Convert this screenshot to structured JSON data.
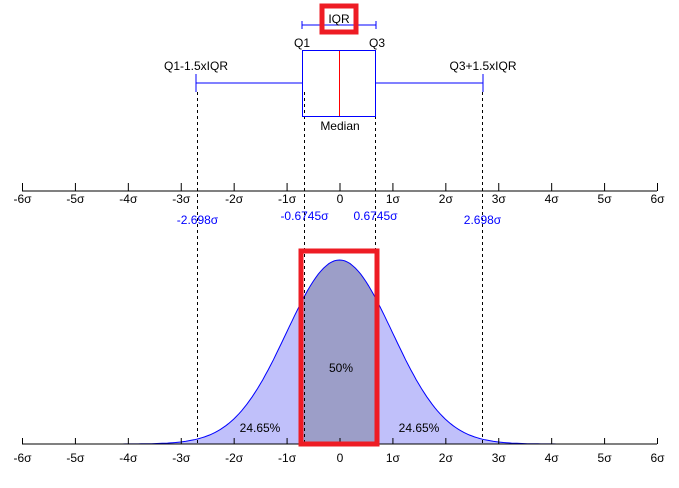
{
  "boxplot": {
    "iqr_label": "IQR",
    "q1_label": "Q1",
    "q3_label": "Q3",
    "lower_whisker_label": "Q1-1.5xIQR",
    "upper_whisker_label": "Q3+1.5xIQR",
    "median_label": "Median"
  },
  "axis": {
    "tick_labels": [
      "-6σ",
      "-5σ",
      "-4σ",
      "-3σ",
      "-2σ",
      "-1σ",
      "0",
      "1σ",
      "2σ",
      "3σ",
      "4σ",
      "5σ",
      "6σ"
    ],
    "range": [
      -6,
      6
    ]
  },
  "markers": [
    {
      "value": -2.698,
      "label": "-2.698σ"
    },
    {
      "value": -0.6745,
      "label": "-0.6745σ"
    },
    {
      "value": 0.6745,
      "label": "0.6745σ"
    },
    {
      "value": 2.698,
      "label": "2.698σ"
    }
  ],
  "distribution": {
    "center_label": "50%",
    "left_label": "24.65%",
    "right_label": "24.65%"
  },
  "colors": {
    "line": "#0000ff",
    "tail_fill": "#c0c0fa",
    "iqr_fill": "#9c9ec8",
    "median": "#ff0000",
    "highlight": "#ee1c24",
    "marker_text": "#0000ff"
  }
}
